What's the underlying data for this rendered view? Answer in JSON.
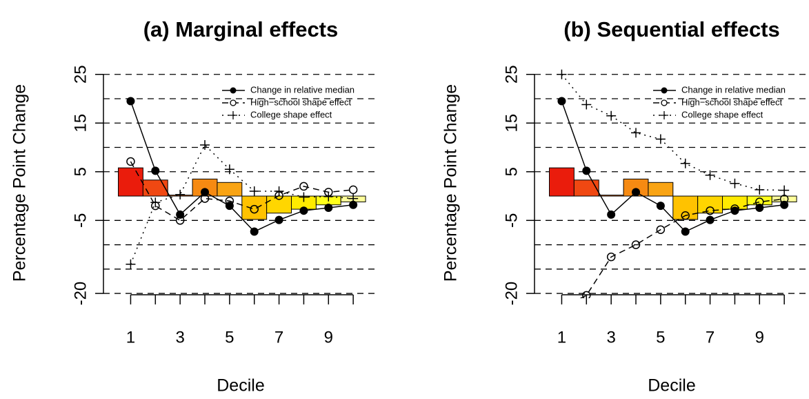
{
  "chart_data": [
    {
      "type": "bar_line",
      "title": "(a) Marginal effects",
      "xlabel": "Decile",
      "ylabel": "Percentage Point Change",
      "x": [
        1,
        2,
        3,
        4,
        5,
        6,
        7,
        8,
        9,
        10
      ],
      "xlim": [
        -0.1,
        11
      ],
      "xticks": [
        1,
        3,
        5,
        7,
        9
      ],
      "ylim": [
        -20.7,
        26.1
      ],
      "yticks": [
        -20,
        -5,
        5,
        15,
        25
      ],
      "grid_lines": [
        -20,
        -15,
        -10,
        -5,
        5,
        10,
        15,
        20,
        25
      ],
      "legend": "topright",
      "bars": {
        "values": [
          5.8,
          3.3,
          0.2,
          3.5,
          2.8,
          -4.8,
          -3.5,
          -2.7,
          -1.8,
          -1.2
        ],
        "colors": [
          "#ea1c0c",
          "#f04812",
          "#f56a14",
          "#f68a12",
          "#f9a414",
          "#ffc200",
          "#ffd600",
          "#ffea00",
          "#ffff1a",
          "#ffff99"
        ]
      },
      "series": [
        {
          "name": "Change in relative median",
          "color": "#000000",
          "marker": "filled-circle",
          "dash": "solid",
          "values": [
            19.5,
            5.2,
            -3.8,
            0.8,
            -2.0,
            -7.3,
            -4.9,
            -3.0,
            -2.4,
            -1.8
          ]
        },
        {
          "name": "High−school shape effect",
          "color": "#000000",
          "marker": "open-circle",
          "dash": "dashed",
          "values": [
            7.1,
            -2.0,
            -5.0,
            -0.5,
            -1.0,
            -2.7,
            0.1,
            2.0,
            0.8,
            1.3
          ]
        },
        {
          "name": "College shape effect",
          "color": "#000000",
          "marker": "plus",
          "dash": "dotted",
          "values": [
            -14.0,
            -1.3,
            0.3,
            10.5,
            5.5,
            1.0,
            1.0,
            -0.2,
            -0.1,
            -0.5
          ]
        }
      ]
    },
    {
      "type": "bar_line",
      "title": "(b) Sequential effects",
      "xlabel": "Decile",
      "ylabel": "Percentage Point Change",
      "x": [
        1,
        2,
        3,
        4,
        5,
        6,
        7,
        8,
        9,
        10
      ],
      "xlim": [
        -0.1,
        11
      ],
      "xticks": [
        1,
        3,
        5,
        7,
        9
      ],
      "ylim": [
        -20.7,
        26.1
      ],
      "yticks": [
        -20,
        -5,
        5,
        15,
        25
      ],
      "grid_lines": [
        -20,
        -15,
        -10,
        -5,
        5,
        10,
        15,
        20,
        25
      ],
      "legend": "topright",
      "bars": {
        "values": [
          5.8,
          3.3,
          0.2,
          3.5,
          2.8,
          -4.8,
          -3.5,
          -2.7,
          -1.8,
          -1.2
        ],
        "colors": [
          "#ea1c0c",
          "#f04812",
          "#f56a14",
          "#f68a12",
          "#f9a414",
          "#ffc200",
          "#ffd600",
          "#ffea00",
          "#ffff1a",
          "#ffff99"
        ]
      },
      "series": [
        {
          "name": "Change in relative median",
          "color": "#000000",
          "marker": "filled-circle",
          "dash": "solid",
          "values": [
            19.5,
            5.2,
            -3.8,
            0.8,
            -2.0,
            -7.3,
            -4.9,
            -3.0,
            -2.4,
            -1.8
          ]
        },
        {
          "name": "High−school shape effect",
          "color": "#000000",
          "marker": "open-circle",
          "dash": "dashed",
          "values": [
            -23.0,
            -20.4,
            -12.5,
            -10.0,
            -6.9,
            -4.0,
            -3.0,
            -2.6,
            -1.2,
            -0.6
          ]
        },
        {
          "name": "College shape effect",
          "color": "#000000",
          "marker": "plus",
          "dash": "dotted",
          "values": [
            25.0,
            18.8,
            16.5,
            13.0,
            11.7,
            6.7,
            4.3,
            2.6,
            1.3,
            1.2
          ]
        }
      ]
    }
  ]
}
